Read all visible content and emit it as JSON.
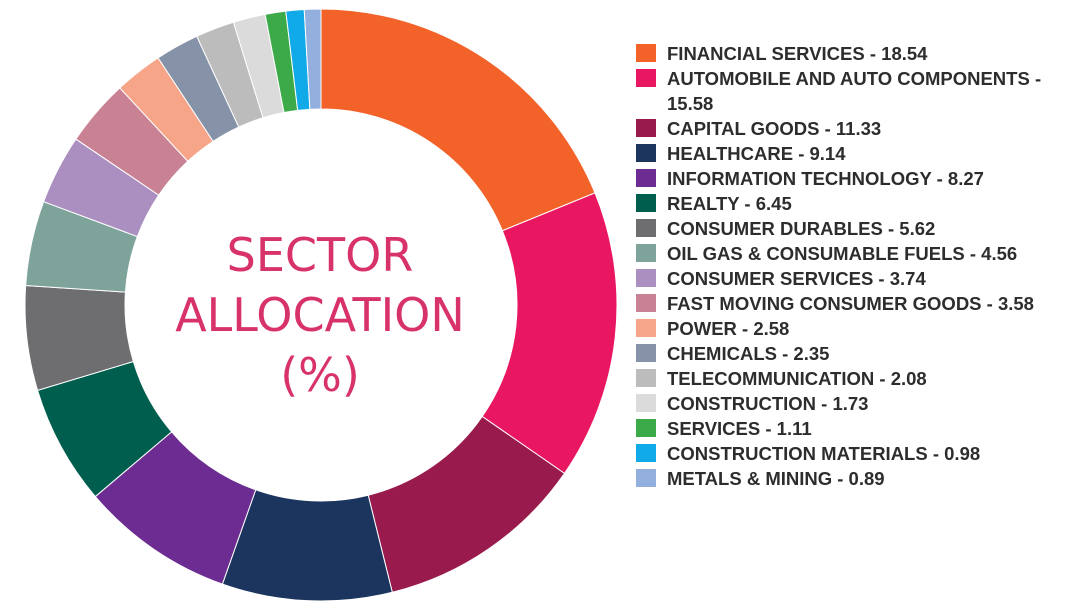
{
  "chart_data": {
    "type": "pie",
    "title_lines": [
      "SECTOR",
      "ALLOCATION",
      "(%)"
    ],
    "categories": [
      "FINANCIAL SERVICES",
      "AUTOMOBILE AND AUTO COMPONENTS",
      "CAPITAL GOODS",
      "HEALTHCARE",
      "INFORMATION TECHNOLOGY",
      "REALTY",
      "CONSUMER DURABLES",
      "OIL GAS & CONSUMABLE FUELS",
      "CONSUMER SERVICES",
      "FAST MOVING CONSUMER GOODS",
      "POWER",
      "CHEMICALS",
      "TELECOMMUNICATION",
      "CONSTRUCTION",
      "SERVICES",
      "CONSTRUCTION MATERIALS",
      "METALS & MINING"
    ],
    "values": [
      18.54,
      15.58,
      11.33,
      9.14,
      8.27,
      6.45,
      5.62,
      4.56,
      3.74,
      3.58,
      2.58,
      2.35,
      2.08,
      1.73,
      1.11,
      0.98,
      0.89
    ],
    "value_labels": [
      "18.54",
      "15.58",
      "11.33",
      "9.14",
      "8.27",
      "6.45",
      "5.62",
      "4.56",
      "3.74",
      "3.58",
      "2.58",
      "2.35",
      "2.08",
      "1.73",
      "1.11",
      "0.98",
      "0.89"
    ],
    "colors": [
      "#f26229",
      "#e91762",
      "#991b4d",
      "#1c355e",
      "#6c2c91",
      "#005e4f",
      "#6e6e70",
      "#7da39a",
      "#ab8fc1",
      "#c98194",
      "#f7a589",
      "#8592a7",
      "#bcbcbc",
      "#dbdbdb",
      "#3daa49",
      "#10aae8",
      "#93afdd"
    ],
    "legend_position": "right",
    "start_angle": "12 o'clock",
    "direction": "clockwise",
    "style": "donut"
  }
}
